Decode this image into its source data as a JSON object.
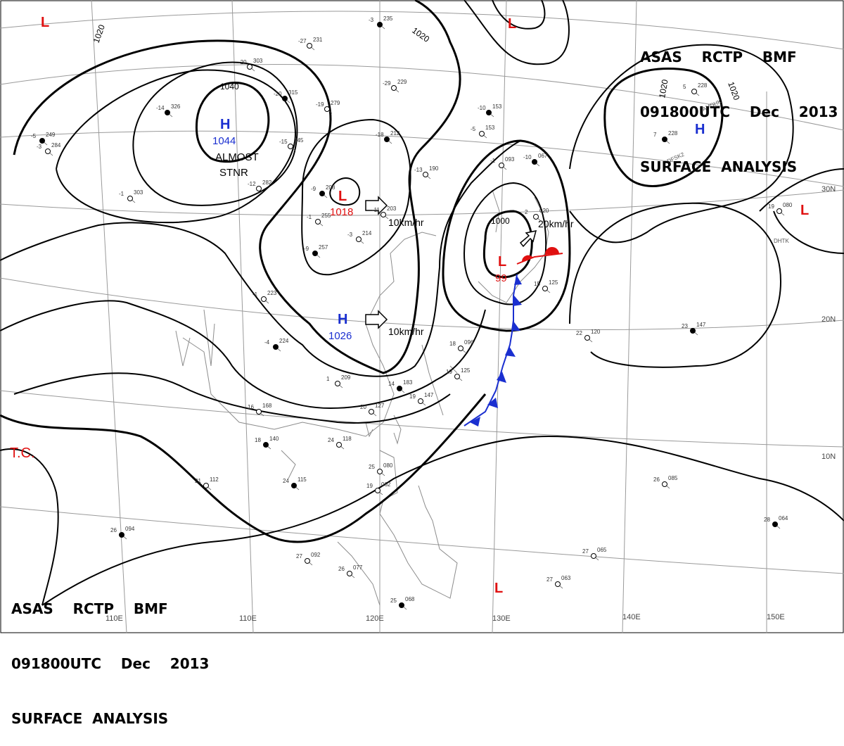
{
  "header": {
    "line1": "ASAS    RCTP    BMF",
    "line2": "091800UTC    Dec    2013",
    "line3": "SURFACE  ANALYSIS"
  },
  "colors": {
    "high": "#1a2fd0",
    "low": "#e01010",
    "isobar": "#000000",
    "grid": "#9a9a9a",
    "coast": "#8c8c8c",
    "cold_front": "#1a2fd0",
    "warm_front": "#e01010"
  },
  "centers": {
    "high_mongolia": {
      "letter": "H",
      "value": "1044",
      "note1": "ALMOST",
      "note2": "STNR"
    },
    "low_north": {
      "letter": "L",
      "value": "1018"
    },
    "high_south": {
      "letter": "H",
      "value": "1026"
    },
    "low_japan": {
      "letter": "L",
      "value": "99"
    },
    "high_pacific": {
      "letter": "H"
    },
    "low_corner_nw": {
      "letter": "L"
    },
    "low_top": {
      "letter": "L"
    },
    "low_east": {
      "letter": "L"
    },
    "low_south": {
      "letter": "L"
    }
  },
  "motions": {
    "m1": "10km/hr",
    "m2": "10km/hr",
    "m3": "20km/hr"
  },
  "isobar_labels": {
    "a": "1020",
    "b": "1020",
    "c": "1040",
    "d": "1000",
    "e": "1020",
    "f": "1020"
  },
  "tc_label": "T.C.",
  "lon_labels": [
    "110E",
    "120E",
    "130E",
    "140E",
    "150E"
  ],
  "lat_labels": [
    "30N",
    "20N",
    "10N"
  ],
  "station_codes": [
    "AMDHK",
    "DFSK2",
    "DHTK"
  ],
  "stations": [
    {
      "t": "-3",
      "p": "235"
    },
    {
      "t": "-27",
      "p": "231"
    },
    {
      "t": "-20",
      "p": "303"
    },
    {
      "t": "-20",
      "p": "315"
    },
    {
      "t": "-19",
      "p": "279"
    },
    {
      "t": "-29",
      "p": "229"
    },
    {
      "t": "-18",
      "p": "212"
    },
    {
      "t": "-13",
      "p": "190"
    },
    {
      "t": "-12",
      "p": "282"
    },
    {
      "t": "-9",
      "p": "208"
    },
    {
      "t": "-1",
      "p": "255"
    },
    {
      "t": "-11",
      "p": "203"
    },
    {
      "t": "-9",
      "p": "257"
    },
    {
      "t": "-3",
      "p": "214"
    },
    {
      "t": "-1",
      "p": "223"
    },
    {
      "t": "-4",
      "p": "224"
    },
    {
      "t": "1",
      "p": "209"
    },
    {
      "t": "16",
      "p": "168"
    },
    {
      "t": "14",
      "p": "183"
    },
    {
      "t": "19",
      "p": "147"
    },
    {
      "t": "20",
      "p": "127"
    },
    {
      "t": "18",
      "p": "140"
    },
    {
      "t": "24",
      "p": "118"
    },
    {
      "t": "21",
      "p": "112"
    },
    {
      "t": "24",
      "p": "115"
    },
    {
      "t": "25",
      "p": "080"
    },
    {
      "t": "19",
      "p": "062"
    },
    {
      "t": "26",
      "p": "094"
    },
    {
      "t": "27",
      "p": "092"
    },
    {
      "t": "26",
      "p": "077"
    },
    {
      "t": "25",
      "p": "068"
    },
    {
      "t": "27",
      "p": "065"
    },
    {
      "t": "27",
      "p": "063"
    },
    {
      "t": "28",
      "p": "064"
    },
    {
      "t": "26",
      "p": "085"
    },
    {
      "t": "22",
      "p": "120"
    },
    {
      "t": "23",
      "p": "147"
    },
    {
      "t": "19",
      "p": "080"
    },
    {
      "t": "5",
      "p": "228"
    },
    {
      "t": "7",
      "p": "228"
    },
    {
      "t": "18",
      "p": "096"
    },
    {
      "t": "19",
      "p": "125"
    },
    {
      "t": "-10",
      "p": "153"
    },
    {
      "t": "-5",
      "p": "153"
    },
    {
      "t": "-1",
      "p": "093"
    },
    {
      "t": "-10",
      "p": "067"
    },
    {
      "t": "2",
      "p": "020"
    },
    {
      "t": "15",
      "p": "125"
    },
    {
      "t": "-5",
      "p": "249"
    },
    {
      "t": "-3",
      "p": "284"
    },
    {
      "t": "-1",
      "p": "303"
    },
    {
      "t": "-14",
      "p": "326"
    },
    {
      "t": "-15",
      "p": "345"
    }
  ]
}
